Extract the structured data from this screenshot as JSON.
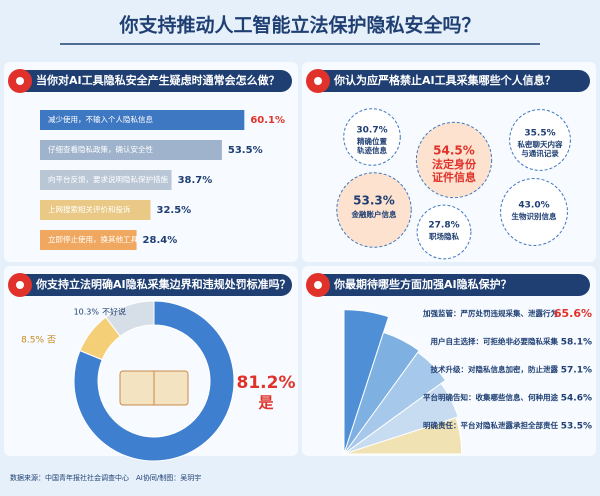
{
  "title": "你支持推动人工智能立法保护隐私安全吗？",
  "source": "数据来源：中国青年报社社会调查中心　AI协同/制图：吴玥宇",
  "chart_data": [
    {
      "type": "hbar",
      "title": "当你对AI工具隐私安全产生疑虑时通常会怎么做？",
      "categories": [
        "减少使用，不输入个人隐私信息",
        "仔细查看隐私政策，确认安全性",
        "向平台反馈，要求说明隐私保护措施",
        "上网搜索相关评价和投诉",
        "立即停止使用，换其他工具"
      ],
      "values": [
        60.1,
        53.5,
        38.7,
        32.5,
        28.4
      ],
      "value_labels": [
        "60.1%",
        "53.5%",
        "38.7%",
        "32.5%",
        "28.4%"
      ],
      "colors": [
        "#3f78c2",
        "#9fb4cc",
        "#b9c6d6",
        "#e9c985",
        "#f0a860"
      ],
      "value_label_colors": [
        "#e0322b",
        "#1f3f73",
        "#1f3f73",
        "#1f3f73",
        "#1f3f73"
      ]
    },
    {
      "type": "bubble",
      "title": "你认为应严格禁止AI工具采集哪些个人信息？",
      "categories": [
        "精确位置轨迹信息",
        "法定身份证件信息",
        "私密聊天内容与通讯记录",
        "金融账户信息",
        "职场隐私",
        "生物识别信息"
      ],
      "values": [
        30.7,
        54.5,
        35.5,
        53.3,
        27.8,
        43.0
      ],
      "value_labels": [
        "30.7%",
        "54.5%",
        "35.5%",
        "53.3%",
        "27.8%",
        "43.0%"
      ],
      "colors": [
        "#ffffff",
        "#fde3cf",
        "#ffffff",
        "#fde3cf",
        "#ffffff",
        "#ffffff"
      ],
      "text_colors": [
        "#1f3f73",
        "#e0322b",
        "#1f3f73",
        "#1f3f73",
        "#1f3f73",
        "#1f3f73"
      ]
    },
    {
      "type": "donut",
      "title": "你支持立法明确AI隐私采集边界和违规处罚标准吗？",
      "categories": [
        "是",
        "否",
        "不好说"
      ],
      "values": [
        81.2,
        8.5,
        10.3
      ],
      "value_labels": [
        "81.2%",
        "8.5%",
        "10.3%"
      ],
      "colors": [
        "#3f7fd0",
        "#f4cf78",
        "#d6dee8"
      ]
    },
    {
      "type": "fan",
      "title": "你最期待哪些方面加强AI隐私保护？",
      "categories": [
        "加强监管：严厉处罚违规采集、泄露行为",
        "用户自主选择：可拒绝非必要隐私采集",
        "技术升级：对隐私信息加密，防止泄露",
        "平台明确告知：收集哪些信息、何种用途",
        "明确责任：平台对隐私泄露承担全部责任"
      ],
      "values": [
        65.6,
        58.1,
        57.1,
        54.6,
        53.5
      ],
      "value_labels": [
        "65.6%",
        "58.1%",
        "57.1%",
        "54.6%",
        "53.5%"
      ],
      "colors": [
        "#4f8fd6",
        "#7fb0e2",
        "#a6c8ea",
        "#c7dcf0",
        "#f1e2b3"
      ],
      "value_label_colors": [
        "#e0322b",
        "#1f3f73",
        "#1f3f73",
        "#1f3f73",
        "#1f3f73"
      ]
    }
  ]
}
